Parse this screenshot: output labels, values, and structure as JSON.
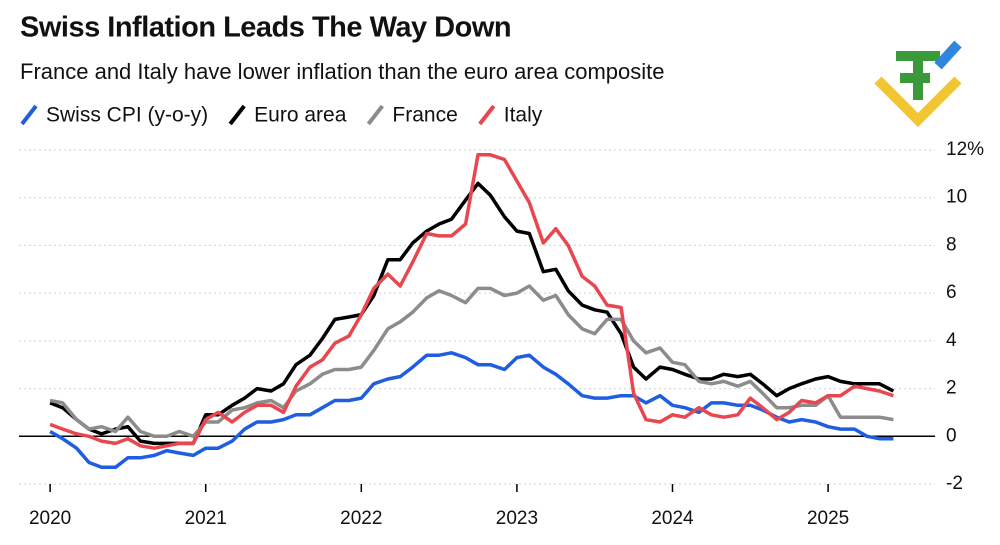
{
  "chart_data": {
    "type": "line",
    "title": "Swiss Inflation Leads The Way Down",
    "subtitle": "France and Italy have lower inflation than the euro area composite",
    "x": [
      2020,
      2020.08,
      2020.17,
      2020.25,
      2020.33,
      2020.42,
      2020.5,
      2020.58,
      2020.67,
      2020.75,
      2020.83,
      2020.92,
      2021,
      2021.08,
      2021.17,
      2021.25,
      2021.33,
      2021.42,
      2021.5,
      2021.58,
      2021.67,
      2021.75,
      2021.83,
      2021.92,
      2022,
      2022.08,
      2022.17,
      2022.25,
      2022.33,
      2022.42,
      2022.5,
      2022.58,
      2022.67,
      2022.75,
      2022.83,
      2022.92,
      2023,
      2023.08,
      2023.17,
      2023.25,
      2023.33,
      2023.42,
      2023.5,
      2023.58,
      2023.67,
      2023.75,
      2023.83,
      2023.92,
      2024,
      2024.08,
      2024.17,
      2024.25,
      2024.33,
      2024.42,
      2024.5,
      2024.58,
      2024.67,
      2024.75,
      2024.83,
      2024.92,
      2025,
      2025.08,
      2025.17,
      2025.25,
      2025.33,
      2025.42
    ],
    "series": [
      {
        "name": "Swiss CPI (y-o-y)",
        "color": "#1f5ee0",
        "values": [
          0.2,
          -0.1,
          -0.5,
          -1.1,
          -1.3,
          -1.3,
          -0.9,
          -0.9,
          -0.8,
          -0.6,
          -0.7,
          -0.8,
          -0.5,
          -0.5,
          -0.2,
          0.3,
          0.6,
          0.6,
          0.7,
          0.9,
          0.9,
          1.2,
          1.5,
          1.5,
          1.6,
          2.2,
          2.4,
          2.5,
          2.9,
          3.4,
          3.4,
          3.5,
          3.3,
          3.0,
          3.0,
          2.8,
          3.3,
          3.4,
          2.9,
          2.6,
          2.2,
          1.7,
          1.6,
          1.6,
          1.7,
          1.7,
          1.4,
          1.7,
          1.3,
          1.2,
          1.0,
          1.4,
          1.4,
          1.3,
          1.3,
          1.1,
          0.8,
          0.6,
          0.7,
          0.6,
          0.4,
          0.3,
          0.3,
          0.0,
          -0.1,
          -0.1
        ]
      },
      {
        "name": "Euro area",
        "color": "#000000",
        "values": [
          1.4,
          1.2,
          0.7,
          0.3,
          0.1,
          0.3,
          0.4,
          -0.2,
          -0.3,
          -0.3,
          -0.3,
          -0.3,
          0.9,
          0.9,
          1.3,
          1.6,
          2.0,
          1.9,
          2.2,
          3.0,
          3.4,
          4.1,
          4.9,
          5.0,
          5.1,
          5.9,
          7.4,
          7.4,
          8.1,
          8.6,
          8.9,
          9.1,
          9.9,
          10.6,
          10.1,
          9.2,
          8.6,
          8.5,
          6.9,
          7.0,
          6.1,
          5.5,
          5.3,
          5.2,
          4.3,
          2.9,
          2.4,
          2.9,
          2.8,
          2.6,
          2.4,
          2.4,
          2.6,
          2.5,
          2.6,
          2.2,
          1.7,
          2.0,
          2.2,
          2.4,
          2.5,
          2.3,
          2.2,
          2.2,
          2.2,
          1.9
        ]
      },
      {
        "name": "France",
        "color": "#8c8c8c",
        "values": [
          1.5,
          1.4,
          0.7,
          0.3,
          0.4,
          0.2,
          0.8,
          0.2,
          0.0,
          0.0,
          0.2,
          0.0,
          0.6,
          0.6,
          1.1,
          1.2,
          1.4,
          1.5,
          1.2,
          1.9,
          2.2,
          2.6,
          2.8,
          2.8,
          2.9,
          3.6,
          4.5,
          4.8,
          5.2,
          5.8,
          6.1,
          5.9,
          5.6,
          6.2,
          6.2,
          5.9,
          6.0,
          6.3,
          5.7,
          5.9,
          5.1,
          4.5,
          4.3,
          4.9,
          4.9,
          4.0,
          3.5,
          3.7,
          3.1,
          3.0,
          2.3,
          2.2,
          2.3,
          2.1,
          2.3,
          1.8,
          1.2,
          1.2,
          1.3,
          1.3,
          1.7,
          0.8,
          0.8,
          0.8,
          0.8,
          0.7
        ]
      },
      {
        "name": "Italy",
        "color": "#e8474f",
        "values": [
          0.5,
          0.3,
          0.1,
          0.0,
          -0.2,
          -0.3,
          -0.1,
          -0.4,
          -0.5,
          -0.4,
          -0.3,
          -0.3,
          0.7,
          1.0,
          0.6,
          1.0,
          1.3,
          1.3,
          1.0,
          2.1,
          2.9,
          3.2,
          3.9,
          4.2,
          5.1,
          6.2,
          6.8,
          6.3,
          7.3,
          8.5,
          8.4,
          8.4,
          8.9,
          11.8,
          11.8,
          11.6,
          10.7,
          9.8,
          8.1,
          8.7,
          8.0,
          6.7,
          6.3,
          5.5,
          5.4,
          1.8,
          0.7,
          0.6,
          0.9,
          0.8,
          1.2,
          0.9,
          0.8,
          0.9,
          1.6,
          1.2,
          0.7,
          1.0,
          1.5,
          1.4,
          1.7,
          1.7,
          2.1,
          2.0,
          1.9,
          1.7
        ]
      }
    ],
    "xlim": [
      2019.8,
      2025.7
    ],
    "xticks": [
      2020,
      2021,
      2022,
      2023,
      2024,
      2025
    ],
    "ylim": [
      -2,
      12
    ],
    "yticks": [
      -2,
      0,
      2,
      4,
      6,
      8,
      10,
      {
        "value": 12,
        "label": "12%"
      }
    ],
    "grid": true
  }
}
